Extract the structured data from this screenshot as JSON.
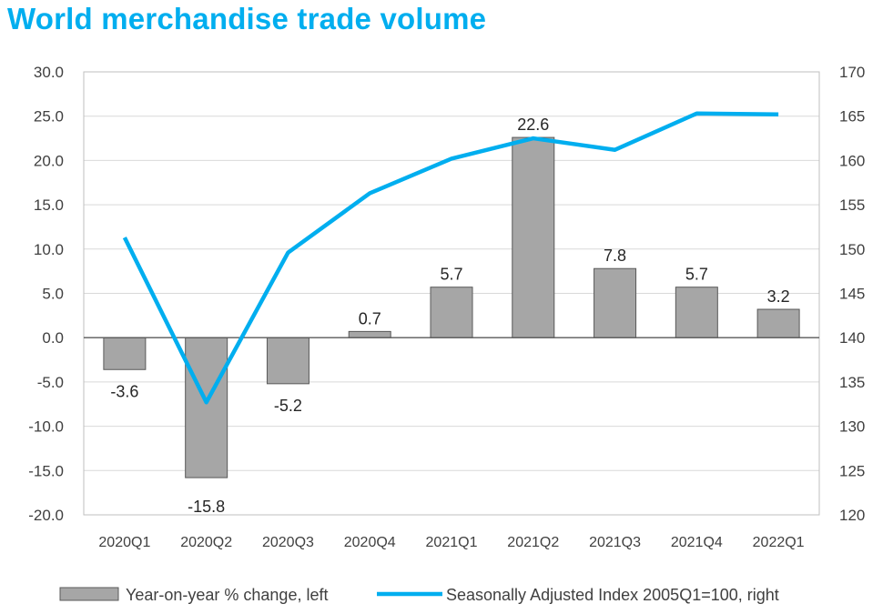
{
  "chart_data": {
    "type": "bar+line",
    "title": "World merchandise trade volume",
    "categories": [
      "2020Q1",
      "2020Q2",
      "2020Q3",
      "2020Q4",
      "2021Q1",
      "2021Q2",
      "2021Q3",
      "2021Q4",
      "2022Q1"
    ],
    "series": [
      {
        "name": "Year-on-year % change, left",
        "type": "bar",
        "axis": "left",
        "color": "#a6a6a6",
        "values": [
          -3.6,
          -15.8,
          -5.2,
          0.7,
          5.7,
          22.6,
          7.8,
          5.7,
          3.2
        ],
        "labels": [
          "-3.6",
          "-15.8",
          "-5.2",
          "0.7",
          "5.7",
          "22.6",
          "7.8",
          "5.7",
          "3.2"
        ]
      },
      {
        "name": "Seasonally Adjusted Index 2005Q1=100, right",
        "type": "line",
        "axis": "right",
        "color": "#00aeef",
        "values": [
          151.3,
          132.7,
          149.6,
          156.3,
          160.2,
          162.5,
          161.2,
          165.3,
          165.2
        ]
      }
    ],
    "yleft": {
      "lim": [
        -20,
        30
      ],
      "ticks": [
        "-20.0",
        "-15.0",
        "-10.0",
        "-5.0",
        "0.0",
        "5.0",
        "10.0",
        "15.0",
        "20.0",
        "25.0",
        "30.0"
      ]
    },
    "yright": {
      "lim": [
        120,
        170
      ],
      "ticks": [
        "120",
        "125",
        "130",
        "135",
        "140",
        "145",
        "150",
        "155",
        "160",
        "165",
        "170"
      ]
    },
    "grid": true,
    "legend": "bottom"
  }
}
